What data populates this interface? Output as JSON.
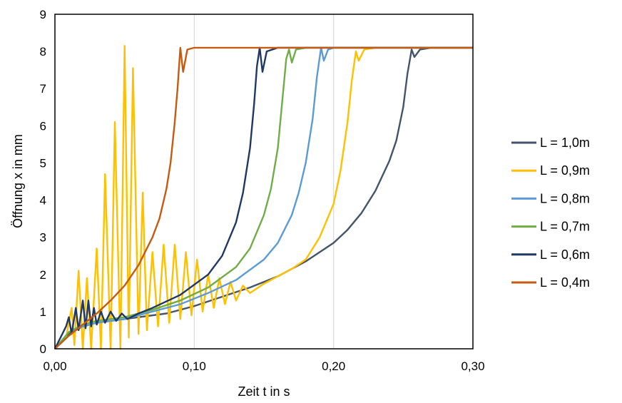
{
  "chart_data": {
    "type": "line",
    "title": "",
    "xlabel": "Zeit t in s",
    "ylabel": "Öffnung x in mm",
    "xlim": [
      0,
      0.3
    ],
    "ylim": [
      0,
      9
    ],
    "x_ticks": [
      0,
      0.1,
      0.2,
      0.3
    ],
    "x_tick_labels": [
      "0,00",
      "0,10",
      "0,20",
      "0,30"
    ],
    "y_ticks": [
      0,
      1,
      2,
      3,
      4,
      5,
      6,
      7,
      8,
      9
    ],
    "y_tick_labels": [
      "0",
      "1",
      "2",
      "3",
      "4",
      "5",
      "6",
      "7",
      "8",
      "9"
    ],
    "grid": "vertical",
    "legend_position": "right",
    "series": [
      {
        "name": "L = 1,0m",
        "color": "#44546A",
        "points": [
          [
            0,
            0
          ],
          [
            0.01,
            0.4
          ],
          [
            0.02,
            0.6
          ],
          [
            0.03,
            0.7
          ],
          [
            0.05,
            0.8
          ],
          [
            0.08,
            0.95
          ],
          [
            0.1,
            1.15
          ],
          [
            0.12,
            1.4
          ],
          [
            0.14,
            1.65
          ],
          [
            0.16,
            1.95
          ],
          [
            0.18,
            2.35
          ],
          [
            0.2,
            2.85
          ],
          [
            0.21,
            3.2
          ],
          [
            0.22,
            3.65
          ],
          [
            0.23,
            4.25
          ],
          [
            0.24,
            5.05
          ],
          [
            0.245,
            5.6
          ],
          [
            0.25,
            6.5
          ],
          [
            0.253,
            7.4
          ],
          [
            0.256,
            8.05
          ],
          [
            0.258,
            7.85
          ],
          [
            0.262,
            8.05
          ],
          [
            0.27,
            8.1
          ],
          [
            0.3,
            8.1
          ]
        ]
      },
      {
        "name": "L = 0,9m",
        "color": "#FFC000",
        "points": [
          [
            0,
            0
          ],
          [
            0.008,
            0.3
          ],
          [
            0.012,
            1.1
          ],
          [
            0.014,
            0.1
          ],
          [
            0.017,
            2.1
          ],
          [
            0.02,
            0
          ],
          [
            0.023,
            1.9
          ],
          [
            0.026,
            0
          ],
          [
            0.03,
            2.7
          ],
          [
            0.033,
            0
          ],
          [
            0.036,
            4.7
          ],
          [
            0.04,
            0
          ],
          [
            0.043,
            6.1
          ],
          [
            0.047,
            0
          ],
          [
            0.05,
            8.15
          ],
          [
            0.053,
            0.3
          ],
          [
            0.056,
            7.55
          ],
          [
            0.06,
            0.4
          ],
          [
            0.063,
            4.2
          ],
          [
            0.066,
            0.5
          ],
          [
            0.07,
            2.6
          ],
          [
            0.074,
            0.6
          ],
          [
            0.078,
            2.8
          ],
          [
            0.082,
            0.7
          ],
          [
            0.086,
            2.8
          ],
          [
            0.09,
            0.8
          ],
          [
            0.094,
            2.6
          ],
          [
            0.098,
            0.9
          ],
          [
            0.102,
            2.4
          ],
          [
            0.106,
            1.0
          ],
          [
            0.11,
            2.0
          ],
          [
            0.114,
            1.1
          ],
          [
            0.118,
            1.9
          ],
          [
            0.122,
            1.2
          ],
          [
            0.126,
            1.8
          ],
          [
            0.13,
            1.3
          ],
          [
            0.135,
            1.7
          ],
          [
            0.14,
            1.5
          ],
          [
            0.15,
            1.75
          ],
          [
            0.16,
            1.95
          ],
          [
            0.17,
            2.15
          ],
          [
            0.18,
            2.4
          ],
          [
            0.19,
            3.0
          ],
          [
            0.2,
            3.9
          ],
          [
            0.205,
            4.8
          ],
          [
            0.21,
            6.1
          ],
          [
            0.213,
            7.2
          ],
          [
            0.216,
            8.0
          ],
          [
            0.218,
            7.75
          ],
          [
            0.222,
            8.05
          ],
          [
            0.23,
            8.1
          ],
          [
            0.3,
            8.1
          ]
        ]
      },
      {
        "name": "L = 0,8m",
        "color": "#5B9BD5",
        "points": [
          [
            0,
            0
          ],
          [
            0.01,
            0.45
          ],
          [
            0.02,
            0.6
          ],
          [
            0.03,
            0.7
          ],
          [
            0.05,
            0.8
          ],
          [
            0.07,
            1.0
          ],
          [
            0.09,
            1.2
          ],
          [
            0.11,
            1.5
          ],
          [
            0.13,
            1.85
          ],
          [
            0.15,
            2.4
          ],
          [
            0.16,
            2.85
          ],
          [
            0.17,
            3.6
          ],
          [
            0.175,
            4.2
          ],
          [
            0.18,
            5.0
          ],
          [
            0.185,
            6.2
          ],
          [
            0.188,
            7.3
          ],
          [
            0.191,
            8.1
          ],
          [
            0.193,
            7.75
          ],
          [
            0.196,
            8.05
          ],
          [
            0.2,
            8.1
          ],
          [
            0.3,
            8.1
          ]
        ]
      },
      {
        "name": "L = 0,7m",
        "color": "#70AD47",
        "points": [
          [
            0,
            0
          ],
          [
            0.01,
            0.45
          ],
          [
            0.02,
            0.65
          ],
          [
            0.03,
            0.75
          ],
          [
            0.05,
            0.85
          ],
          [
            0.07,
            1.05
          ],
          [
            0.09,
            1.3
          ],
          [
            0.11,
            1.65
          ],
          [
            0.13,
            2.2
          ],
          [
            0.14,
            2.7
          ],
          [
            0.15,
            3.6
          ],
          [
            0.155,
            4.3
          ],
          [
            0.16,
            5.4
          ],
          [
            0.163,
            6.6
          ],
          [
            0.166,
            7.8
          ],
          [
            0.168,
            8.05
          ],
          [
            0.17,
            7.7
          ],
          [
            0.173,
            8.05
          ],
          [
            0.18,
            8.1
          ],
          [
            0.3,
            8.1
          ]
        ]
      },
      {
        "name": "L = 0,6m",
        "color": "#203864",
        "points": [
          [
            0,
            0
          ],
          [
            0.004,
            0.3
          ],
          [
            0.008,
            0.6
          ],
          [
            0.01,
            0.85
          ],
          [
            0.012,
            0.4
          ],
          [
            0.015,
            1.1
          ],
          [
            0.017,
            0.5
          ],
          [
            0.02,
            1.3
          ],
          [
            0.022,
            0.55
          ],
          [
            0.024,
            1.3
          ],
          [
            0.026,
            0.6
          ],
          [
            0.028,
            1.1
          ],
          [
            0.03,
            0.65
          ],
          [
            0.033,
            1.0
          ],
          [
            0.036,
            0.7
          ],
          [
            0.04,
            1.0
          ],
          [
            0.044,
            0.75
          ],
          [
            0.048,
            0.95
          ],
          [
            0.052,
            0.8
          ],
          [
            0.06,
            0.95
          ],
          [
            0.07,
            1.1
          ],
          [
            0.09,
            1.45
          ],
          [
            0.11,
            2.0
          ],
          [
            0.12,
            2.5
          ],
          [
            0.13,
            3.4
          ],
          [
            0.135,
            4.2
          ],
          [
            0.14,
            5.4
          ],
          [
            0.143,
            6.6
          ],
          [
            0.145,
            7.6
          ],
          [
            0.147,
            8.1
          ],
          [
            0.149,
            7.45
          ],
          [
            0.152,
            8.0
          ],
          [
            0.16,
            8.1
          ],
          [
            0.3,
            8.1
          ]
        ]
      },
      {
        "name": "L = 0,4m",
        "color": "#C55A11",
        "points": [
          [
            0,
            0
          ],
          [
            0.01,
            0.35
          ],
          [
            0.02,
            0.65
          ],
          [
            0.03,
            0.95
          ],
          [
            0.04,
            1.3
          ],
          [
            0.05,
            1.7
          ],
          [
            0.06,
            2.25
          ],
          [
            0.07,
            3.0
          ],
          [
            0.075,
            3.5
          ],
          [
            0.08,
            4.3
          ],
          [
            0.083,
            5.0
          ],
          [
            0.086,
            6.1
          ],
          [
            0.088,
            7.0
          ],
          [
            0.09,
            8.1
          ],
          [
            0.092,
            7.45
          ],
          [
            0.095,
            8.05
          ],
          [
            0.1,
            8.1
          ],
          [
            0.3,
            8.1
          ]
        ]
      }
    ]
  }
}
